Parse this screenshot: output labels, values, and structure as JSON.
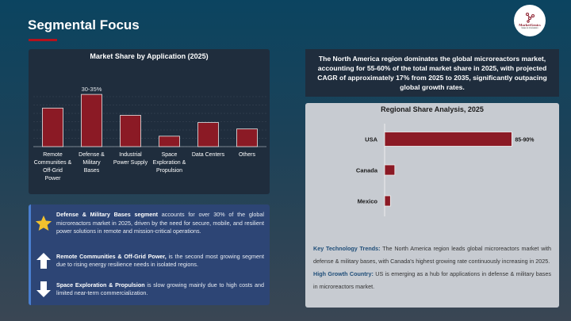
{
  "header": {
    "title": "Segmental Focus",
    "logo_text": "MarketGenics",
    "logo_tagline": "Ideas to Innovation"
  },
  "colors": {
    "accent": "#b3121d",
    "bar": "#8b1a25",
    "highlight": "#1f4e79"
  },
  "chart_data": [
    {
      "type": "bar",
      "title": "Market Share by Application (2025)",
      "categories": [
        "Remote Communities & Off-Grid Power",
        "Defense & Military Bases",
        "Industrial Power Supply",
        "Space Exploration & Propulsion",
        "Data Centers",
        "Others"
      ],
      "values": [
        24,
        32.5,
        19.5,
        6.5,
        15,
        11
      ],
      "data_labels": [
        "",
        "30-35%",
        "",
        "",
        "",
        ""
      ],
      "grid": true,
      "xlabel": "",
      "ylabel": ""
    },
    {
      "type": "bar",
      "orientation": "horizontal",
      "title": "Regional Share Analysis, 2025",
      "categories": [
        "USA",
        "Canada",
        "Mexico"
      ],
      "values": [
        87.5,
        7,
        4
      ],
      "data_labels": [
        "85-90%",
        "",
        ""
      ]
    }
  ],
  "summary": "The North America region dominates the global microreactors market, accounting for 55-60% of the total market share in 2025, with projected CAGR of approximately 17% from 2025 to 2035, significantly outpacing global growth rates.",
  "insights": [
    {
      "icon": "star-icon",
      "bold": "Defense & Military Bases segment",
      "text": " accounts for over 30% of the global microreactors market in 2025, driven by the need for secure, mobile, and resilient power solutions in remote and mission-critical operations."
    },
    {
      "icon": "arrow-up-icon",
      "bold": "Remote Communities & Off-Grid Power,",
      "text": " is the second most growing segment due to rising energy resilience needs in isolated regions."
    },
    {
      "icon": "arrow-down-icon",
      "bold": "Space Exploration & Propulsion",
      "text": " is slow growing mainly due to high costs and limited near-term commercialization."
    }
  ],
  "notes": [
    {
      "label": "Key Technology Trends:",
      "text": " The North America region leads global microreactors market with defense & military bases, with Canada's highest growing rate continuously increasing in 2025."
    },
    {
      "label": "High Growth Country:",
      "text": " US is emerging as a hub for applications in defense & military bases in microreactors market."
    }
  ]
}
